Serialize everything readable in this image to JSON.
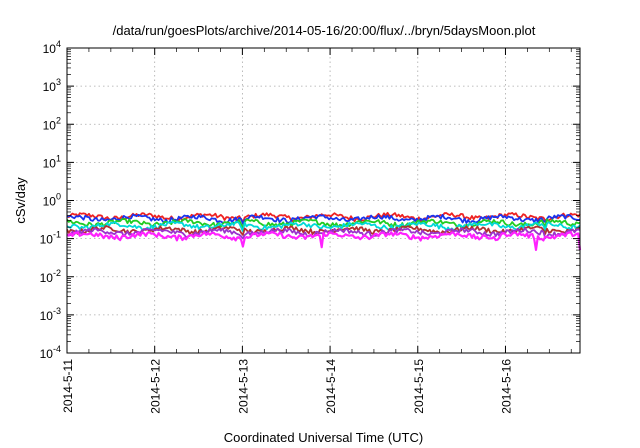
{
  "chart_data": {
    "type": "line",
    "title": "/data/run/goesPlots/archive/2014-05-16/20:00/flux/../bryn/5daysMoon.plot",
    "xlabel": "Coordinated Universal Time (UTC)",
    "ylabel": "cSv/day",
    "x_start": "2014-05-11",
    "x_end": "2014-05-16 20:00",
    "xlim_days": [
      0,
      5.85
    ],
    "xticks": [
      {
        "label": "2014-5-11",
        "day": 0
      },
      {
        "label": "2014-5-12",
        "day": 1
      },
      {
        "label": "2014-5-13",
        "day": 2
      },
      {
        "label": "2014-5-14",
        "day": 3
      },
      {
        "label": "2014-5-15",
        "day": 4
      },
      {
        "label": "2014-5-16",
        "day": 5
      }
    ],
    "yscale": "log",
    "ylim": [
      0.0001,
      10000
    ],
    "yticks": [
      {
        "base": "10",
        "exp": "4",
        "value": 10000
      },
      {
        "base": "10",
        "exp": "3",
        "value": 1000
      },
      {
        "base": "10",
        "exp": "2",
        "value": 100
      },
      {
        "base": "10",
        "exp": "1",
        "value": 10
      },
      {
        "base": "10",
        "exp": "0",
        "value": 1
      },
      {
        "base": "10",
        "exp": "-1",
        "value": 0.1
      },
      {
        "base": "10",
        "exp": "-2",
        "value": 0.01
      },
      {
        "base": "10",
        "exp": "-3",
        "value": 0.001
      },
      {
        "base": "10",
        "exp": "-4",
        "value": 0.0001
      }
    ],
    "grid": true,
    "legend": "none",
    "series": [
      {
        "color": "#ee2222",
        "base": 0.38,
        "dips": [
          [
            2.0,
            0.25
          ],
          [
            5.45,
            0.3
          ]
        ]
      },
      {
        "color": "#1a33ee",
        "base": 0.34,
        "dips": [
          [
            2.0,
            0.22
          ],
          [
            5.45,
            0.27
          ]
        ]
      },
      {
        "color": "#22cc22",
        "base": 0.26,
        "dips": [
          [
            2.0,
            0.16
          ],
          [
            5.45,
            0.2
          ]
        ]
      },
      {
        "color": "#00d8d8",
        "base": 0.22,
        "dips": [
          [
            2.0,
            0.13
          ],
          [
            5.45,
            0.16
          ]
        ]
      },
      {
        "color": "#b03030",
        "base": 0.17,
        "dips": [
          [
            2.0,
            0.11
          ],
          [
            5.45,
            0.13
          ]
        ]
      },
      {
        "color": "#9a33cc",
        "base": 0.15,
        "dips": [
          [
            2.0,
            0.09
          ],
          [
            5.45,
            0.1
          ]
        ]
      },
      {
        "color": "#ff22ff",
        "base": 0.12,
        "dips": [
          [
            2.0,
            0.055
          ],
          [
            2.9,
            0.05
          ],
          [
            4.9,
            0.055
          ],
          [
            5.35,
            0.05
          ],
          [
            5.85,
            0.05
          ]
        ]
      }
    ]
  }
}
